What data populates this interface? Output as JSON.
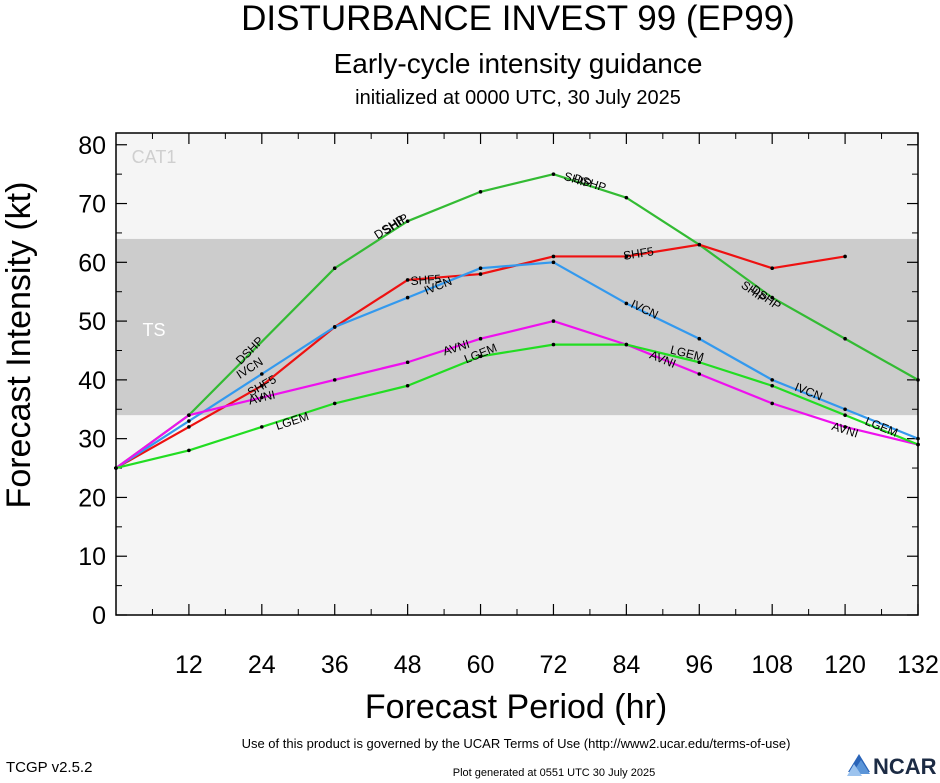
{
  "chart_data": {
    "type": "line",
    "title": "DISTURBANCE INVEST 99 (EP99)",
    "subtitle": "Early-cycle intensity guidance",
    "subtitle2": "initialized at 0000 UTC, 30 July 2025",
    "xlabel": "Forecast Period (hr)",
    "ylabel": "Forecast Intensity (kt)",
    "xlim": [
      0,
      132
    ],
    "ylim": [
      0,
      82
    ],
    "xticks": [
      12,
      24,
      36,
      48,
      60,
      72,
      84,
      96,
      108,
      120,
      132
    ],
    "yticks": [
      0,
      10,
      20,
      30,
      40,
      50,
      60,
      70,
      80
    ],
    "bands": [
      {
        "label": "TS",
        "from": 34,
        "to": 64,
        "color": "#cccccc"
      },
      {
        "label": "CAT1",
        "from": 64,
        "to": 82,
        "color": "#f5f5f5"
      }
    ],
    "below_band_color": "#f5f5f5",
    "series": [
      {
        "name": "DSHP",
        "color": "#33bb33",
        "x": [
          0,
          12,
          36,
          48,
          60,
          72,
          84,
          96,
          108,
          120,
          132
        ],
        "y": [
          25,
          34,
          59,
          67,
          72,
          75,
          71,
          63,
          54,
          47,
          40
        ],
        "labels": [
          {
            "text": "DSHP",
            "x": 22,
            "y": 45
          },
          {
            "text": "DSHP",
            "x": 45,
            "y": 66
          },
          {
            "text": "SHIP",
            "x": 46,
            "y": 66.5
          },
          {
            "text": "SHIP",
            "x": 76,
            "y": 74
          },
          {
            "text": "DSHP",
            "x": 78,
            "y": 73.5
          },
          {
            "text": "SHIP",
            "x": 105,
            "y": 55
          },
          {
            "text": "DSHP",
            "x": 107,
            "y": 54
          }
        ]
      },
      {
        "name": "SHF5",
        "color": "#ee1111",
        "x": [
          0,
          12,
          24,
          36,
          48,
          60,
          72,
          84,
          96,
          108,
          120
        ],
        "y": [
          25,
          32,
          39,
          49,
          57,
          58,
          61,
          61,
          63,
          59,
          61
        ],
        "labels": [
          {
            "text": "SHF5",
            "x": 24,
            "y": 39
          },
          {
            "text": "SHF5",
            "x": 51,
            "y": 57
          },
          {
            "text": "SHF5",
            "x": 86,
            "y": 61.5
          }
        ]
      },
      {
        "name": "IVCN",
        "color": "#3399ee",
        "x": [
          0,
          12,
          24,
          36,
          48,
          60,
          72,
          84,
          96,
          108,
          120,
          132
        ],
        "y": [
          25,
          33,
          41,
          49,
          54,
          59,
          60,
          53,
          47,
          40,
          35,
          30
        ],
        "labels": [
          {
            "text": "IVCN",
            "x": 22,
            "y": 42
          },
          {
            "text": "IVCN",
            "x": 53,
            "y": 56
          },
          {
            "text": "IVCN",
            "x": 87,
            "y": 52
          },
          {
            "text": "IVCN",
            "x": 114,
            "y": 38
          }
        ]
      },
      {
        "name": "AVNI",
        "color": "#ee11ee",
        "x": [
          0,
          12,
          24,
          36,
          48,
          60,
          72,
          84,
          96,
          108,
          120,
          132
        ],
        "y": [
          25,
          34,
          37,
          40,
          43,
          47,
          50,
          46,
          41,
          36,
          32,
          29
        ],
        "labels": [
          {
            "text": "AVNI",
            "x": 24,
            "y": 37
          },
          {
            "text": "AVNI",
            "x": 56,
            "y": 45.5
          },
          {
            "text": "AVNI",
            "x": 90,
            "y": 43.5
          },
          {
            "text": "AVNI",
            "x": 120,
            "y": 31.5
          }
        ]
      },
      {
        "name": "LGEM",
        "color": "#22dd22",
        "x": [
          0,
          12,
          24,
          36,
          48,
          60,
          72,
          84,
          96,
          108,
          120,
          132
        ],
        "y": [
          25,
          28,
          32,
          36,
          39,
          44,
          46,
          46,
          43,
          39,
          34,
          29
        ],
        "labels": [
          {
            "text": "LGEM",
            "x": 29,
            "y": 33
          },
          {
            "text": "LGEM",
            "x": 60,
            "y": 44.5
          },
          {
            "text": "LGEM",
            "x": 94,
            "y": 44.5
          },
          {
            "text": "LGEM",
            "x": 126,
            "y": 32
          }
        ]
      }
    ]
  },
  "footer": {
    "terms": "Use of this product is governed by the UCAR Terms of Use (http://www2.ucar.edu/terms-of-use)",
    "version": "TCGP v2.5.2",
    "generated": "Plot generated at 0551 UTC   30 July 2025",
    "logo": "NCAR"
  }
}
